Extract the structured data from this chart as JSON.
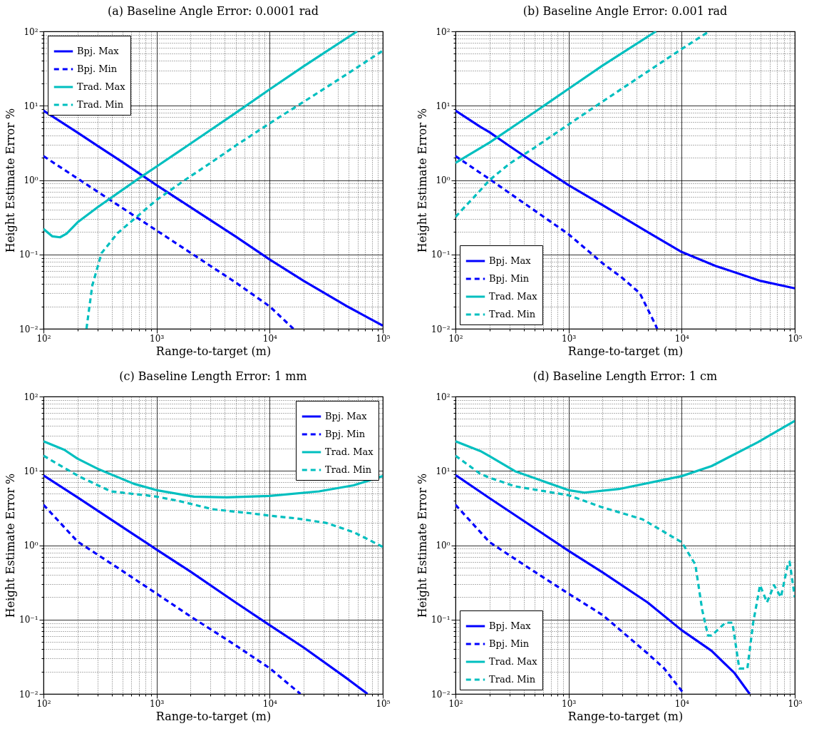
{
  "chart_data": [
    {
      "type": "line",
      "title": "(a)  Baseline Angle Error: 0.0001 rad",
      "xlabel": "Range-to-target (m)",
      "ylabel": "Height Estimate Error %",
      "log": "xy",
      "grid": true,
      "legend": "top left",
      "xlim": [
        100,
        100000
      ],
      "ylim": [
        0.01,
        100
      ],
      "xticks": [
        {
          "value": 100,
          "label": "10²"
        },
        {
          "value": 200,
          "label": null
        },
        {
          "value": 300,
          "label": null
        },
        {
          "value": 400,
          "label": null
        },
        {
          "value": 500,
          "label": null
        },
        {
          "value": 600,
          "label": null
        },
        {
          "value": 700,
          "label": null
        },
        {
          "value": 800,
          "label": null
        },
        {
          "value": 900,
          "label": null
        },
        {
          "value": 1000,
          "label": "10³"
        },
        {
          "value": 2000,
          "label": null
        },
        {
          "value": 3000,
          "label": null
        },
        {
          "value": 4000,
          "label": null
        },
        {
          "value": 5000,
          "label": null
        },
        {
          "value": 6000,
          "label": null
        },
        {
          "value": 7000,
          "label": null
        },
        {
          "value": 8000,
          "label": null
        },
        {
          "value": 9000,
          "label": null
        },
        {
          "value": 10000,
          "label": "10⁴"
        },
        {
          "value": 20000,
          "label": null
        },
        {
          "value": 30000,
          "label": null
        },
        {
          "value": 40000,
          "label": null
        },
        {
          "value": 50000,
          "label": null
        },
        {
          "value": 60000,
          "label": null
        },
        {
          "value": 70000,
          "label": null
        },
        {
          "value": 80000,
          "label": null
        },
        {
          "value": 90000,
          "label": null
        },
        {
          "value": 100000,
          "label": "10⁵"
        }
      ],
      "yticks": [
        {
          "value": 0.01,
          "label": "10⁻²"
        },
        {
          "value": 0.02,
          "label": null
        },
        {
          "value": 0.03,
          "label": null
        },
        {
          "value": 0.04,
          "label": null
        },
        {
          "value": 0.05,
          "label": null
        },
        {
          "value": 0.06,
          "label": null
        },
        {
          "value": 0.07,
          "label": null
        },
        {
          "value": 0.08,
          "label": null
        },
        {
          "value": 0.09,
          "label": null
        },
        {
          "value": 0.1,
          "label": "10⁻¹"
        },
        {
          "value": 0.2,
          "label": null
        },
        {
          "value": 0.3,
          "label": null
        },
        {
          "value": 0.4,
          "label": null
        },
        {
          "value": 0.5,
          "label": null
        },
        {
          "value": 0.6,
          "label": null
        },
        {
          "value": 0.7,
          "label": null
        },
        {
          "value": 0.8,
          "label": null
        },
        {
          "value": 0.9,
          "label": null
        },
        {
          "value": 1,
          "label": "10⁰"
        },
        {
          "value": 2,
          "label": null
        },
        {
          "value": 3,
          "label": null
        },
        {
          "value": 4,
          "label": null
        },
        {
          "value": 5,
          "label": null
        },
        {
          "value": 6,
          "label": null
        },
        {
          "value": 7,
          "label": null
        },
        {
          "value": 8,
          "label": null
        },
        {
          "value": 9,
          "label": null
        },
        {
          "value": 10,
          "label": "10¹"
        },
        {
          "value": 20,
          "label": null
        },
        {
          "value": 30,
          "label": null
        },
        {
          "value": 40,
          "label": null
        },
        {
          "value": 50,
          "label": null
        },
        {
          "value": 60,
          "label": null
        },
        {
          "value": 70,
          "label": null
        },
        {
          "value": 80,
          "label": null
        },
        {
          "value": 90,
          "label": null
        },
        {
          "value": 100,
          "label": "10²"
        }
      ],
      "series": [
        {
          "name": "Bpj. Max",
          "color": "#0000ff",
          "line_style": "solid",
          "x": [
            100,
            200,
            300,
            500,
            1000,
            2000,
            5000,
            10000,
            20000,
            50000,
            100000
          ],
          "values": [
            8.6,
            4.35,
            2.9,
            1.74,
            0.855,
            0.43,
            0.174,
            0.0855,
            0.044,
            0.0195,
            0.011
          ]
        },
        {
          "name": "Bpj. Min",
          "color": "#0000ff",
          "line_style": "dashed",
          "x": [
            100,
            200,
            300,
            500,
            1000,
            2000,
            5000,
            10000,
            16200
          ],
          "values": [
            2.1,
            1.05,
            0.7,
            0.42,
            0.21,
            0.105,
            0.042,
            0.02,
            0.01
          ]
        },
        {
          "name": "Trad. Max",
          "color": "#00bfbf",
          "line_style": "solid",
          "x": [
            100,
            120,
            140,
            160,
            200,
            300,
            500,
            727,
            1000,
            2000,
            5000,
            10000,
            20000,
            59300
          ],
          "values": [
            0.22,
            0.175,
            0.17,
            0.19,
            0.27,
            0.43,
            0.74,
            1.1,
            1.52,
            3.1,
            8.0,
            16.6,
            34,
            100
          ]
        },
        {
          "name": "Trad. Min",
          "color": "#00bfbf",
          "line_style": "dashed",
          "x": [
            240,
            255,
            270,
            326,
            453,
            692,
            1000,
            1776,
            3000,
            5000,
            10000,
            20000,
            50000,
            100000
          ],
          "values": [
            0.01,
            0.02,
            0.038,
            0.104,
            0.194,
            0.335,
            0.54,
            1.0,
            1.7,
            2.9,
            5.8,
            11.3,
            27.6,
            55
          ]
        }
      ]
    },
    {
      "type": "line",
      "title": "(b)  Baseline Angle Error: 0.001 rad",
      "xlabel": "Range-to-target (m)",
      "ylabel": "Height Estimate Error %",
      "log": "xy",
      "grid": true,
      "legend": "bottom left",
      "xlim": [
        100,
        100000
      ],
      "ylim": [
        0.01,
        100
      ],
      "xticks": [
        {
          "value": 100,
          "label": "10²"
        },
        {
          "value": 200,
          "label": null
        },
        {
          "value": 300,
          "label": null
        },
        {
          "value": 400,
          "label": null
        },
        {
          "value": 500,
          "label": null
        },
        {
          "value": 600,
          "label": null
        },
        {
          "value": 700,
          "label": null
        },
        {
          "value": 800,
          "label": null
        },
        {
          "value": 900,
          "label": null
        },
        {
          "value": 1000,
          "label": "10³"
        },
        {
          "value": 2000,
          "label": null
        },
        {
          "value": 3000,
          "label": null
        },
        {
          "value": 4000,
          "label": null
        },
        {
          "value": 5000,
          "label": null
        },
        {
          "value": 6000,
          "label": null
        },
        {
          "value": 7000,
          "label": null
        },
        {
          "value": 8000,
          "label": null
        },
        {
          "value": 9000,
          "label": null
        },
        {
          "value": 10000,
          "label": "10⁴"
        },
        {
          "value": 20000,
          "label": null
        },
        {
          "value": 30000,
          "label": null
        },
        {
          "value": 40000,
          "label": null
        },
        {
          "value": 50000,
          "label": null
        },
        {
          "value": 60000,
          "label": null
        },
        {
          "value": 70000,
          "label": null
        },
        {
          "value": 80000,
          "label": null
        },
        {
          "value": 90000,
          "label": null
        },
        {
          "value": 100000,
          "label": "10⁵"
        }
      ],
      "yticks": [
        {
          "value": 0.01,
          "label": "10⁻²"
        },
        {
          "value": 0.02,
          "label": null
        },
        {
          "value": 0.03,
          "label": null
        },
        {
          "value": 0.04,
          "label": null
        },
        {
          "value": 0.05,
          "label": null
        },
        {
          "value": 0.06,
          "label": null
        },
        {
          "value": 0.07,
          "label": null
        },
        {
          "value": 0.08,
          "label": null
        },
        {
          "value": 0.09,
          "label": null
        },
        {
          "value": 0.1,
          "label": "10⁻¹"
        },
        {
          "value": 0.2,
          "label": null
        },
        {
          "value": 0.3,
          "label": null
        },
        {
          "value": 0.4,
          "label": null
        },
        {
          "value": 0.5,
          "label": null
        },
        {
          "value": 0.6,
          "label": null
        },
        {
          "value": 0.7,
          "label": null
        },
        {
          "value": 0.8,
          "label": null
        },
        {
          "value": 0.9,
          "label": null
        },
        {
          "value": 1,
          "label": "10⁰"
        },
        {
          "value": 2,
          "label": null
        },
        {
          "value": 3,
          "label": null
        },
        {
          "value": 4,
          "label": null
        },
        {
          "value": 5,
          "label": null
        },
        {
          "value": 6,
          "label": null
        },
        {
          "value": 7,
          "label": null
        },
        {
          "value": 8,
          "label": null
        },
        {
          "value": 9,
          "label": null
        },
        {
          "value": 10,
          "label": "10¹"
        },
        {
          "value": 20,
          "label": null
        },
        {
          "value": 30,
          "label": null
        },
        {
          "value": 40,
          "label": null
        },
        {
          "value": 50,
          "label": null
        },
        {
          "value": 60,
          "label": null
        },
        {
          "value": 70,
          "label": null
        },
        {
          "value": 80,
          "label": null
        },
        {
          "value": 90,
          "label": null
        },
        {
          "value": 100,
          "label": "10²"
        }
      ],
      "series": [
        {
          "name": "Bpj. Max",
          "color": "#0000ff",
          "line_style": "solid",
          "x": [
            100,
            166,
            200,
            300,
            500,
            1000,
            2000,
            5000,
            10000,
            20000,
            50000,
            100000
          ],
          "values": [
            8.6,
            5.2,
            4.4,
            2.87,
            1.7,
            0.855,
            0.46,
            0.2,
            0.108,
            0.07,
            0.044,
            0.035
          ]
        },
        {
          "name": "Bpj. Min",
          "color": "#0000ff",
          "line_style": "dashed",
          "x": [
            100,
            200,
            500,
            1000,
            2000,
            3000,
            4270,
            5800,
            6070
          ],
          "values": [
            2.1,
            1.03,
            0.39,
            0.187,
            0.076,
            0.048,
            0.03,
            0.0117,
            0.01
          ]
        },
        {
          "name": "Trad. Max",
          "color": "#00bfbf",
          "line_style": "solid",
          "x": [
            100,
            200,
            500,
            1000,
            2000,
            5930
          ],
          "values": [
            1.7,
            3.2,
            8.2,
            16.9,
            34.7,
            100
          ]
        },
        {
          "name": "Trad. Min",
          "color": "#00bfbf",
          "line_style": "dashed",
          "x": [
            100,
            166,
            200,
            300,
            500,
            1000,
            2000,
            5000,
            10000,
            17500
          ],
          "values": [
            0.32,
            0.73,
            1.0,
            1.66,
            2.73,
            5.6,
            11.4,
            28.8,
            58,
            100
          ]
        }
      ]
    },
    {
      "type": "line",
      "title": "(c)  Baseline Length Error: 1 mm",
      "xlabel": "Range-to-target (m)",
      "ylabel": "Height Estimate Error %",
      "log": "xy",
      "grid": true,
      "legend": "top right",
      "xlim": [
        100,
        100000
      ],
      "ylim": [
        0.01,
        100
      ],
      "xticks": [
        {
          "value": 100,
          "label": "10²"
        },
        {
          "value": 200,
          "label": null
        },
        {
          "value": 300,
          "label": null
        },
        {
          "value": 400,
          "label": null
        },
        {
          "value": 500,
          "label": null
        },
        {
          "value": 600,
          "label": null
        },
        {
          "value": 700,
          "label": null
        },
        {
          "value": 800,
          "label": null
        },
        {
          "value": 900,
          "label": null
        },
        {
          "value": 1000,
          "label": "10³"
        },
        {
          "value": 2000,
          "label": null
        },
        {
          "value": 3000,
          "label": null
        },
        {
          "value": 4000,
          "label": null
        },
        {
          "value": 5000,
          "label": null
        },
        {
          "value": 6000,
          "label": null
        },
        {
          "value": 7000,
          "label": null
        },
        {
          "value": 8000,
          "label": null
        },
        {
          "value": 9000,
          "label": null
        },
        {
          "value": 10000,
          "label": "10⁴"
        },
        {
          "value": 20000,
          "label": null
        },
        {
          "value": 30000,
          "label": null
        },
        {
          "value": 40000,
          "label": null
        },
        {
          "value": 50000,
          "label": null
        },
        {
          "value": 60000,
          "label": null
        },
        {
          "value": 70000,
          "label": null
        },
        {
          "value": 80000,
          "label": null
        },
        {
          "value": 90000,
          "label": null
        },
        {
          "value": 100000,
          "label": "10⁵"
        }
      ],
      "yticks": [
        {
          "value": 0.01,
          "label": "10⁻²"
        },
        {
          "value": 0.02,
          "label": null
        },
        {
          "value": 0.03,
          "label": null
        },
        {
          "value": 0.04,
          "label": null
        },
        {
          "value": 0.05,
          "label": null
        },
        {
          "value": 0.06,
          "label": null
        },
        {
          "value": 0.07,
          "label": null
        },
        {
          "value": 0.08,
          "label": null
        },
        {
          "value": 0.09,
          "label": null
        },
        {
          "value": 0.1,
          "label": "10⁻¹"
        },
        {
          "value": 0.2,
          "label": null
        },
        {
          "value": 0.3,
          "label": null
        },
        {
          "value": 0.4,
          "label": null
        },
        {
          "value": 0.5,
          "label": null
        },
        {
          "value": 0.6,
          "label": null
        },
        {
          "value": 0.7,
          "label": null
        },
        {
          "value": 0.8,
          "label": null
        },
        {
          "value": 0.9,
          "label": null
        },
        {
          "value": 1,
          "label": "10⁰"
        },
        {
          "value": 2,
          "label": null
        },
        {
          "value": 3,
          "label": null
        },
        {
          "value": 4,
          "label": null
        },
        {
          "value": 5,
          "label": null
        },
        {
          "value": 6,
          "label": null
        },
        {
          "value": 7,
          "label": null
        },
        {
          "value": 8,
          "label": null
        },
        {
          "value": 9,
          "label": null
        },
        {
          "value": 10,
          "label": "10¹"
        },
        {
          "value": 20,
          "label": null
        },
        {
          "value": 30,
          "label": null
        },
        {
          "value": 40,
          "label": null
        },
        {
          "value": 50,
          "label": null
        },
        {
          "value": 60,
          "label": null
        },
        {
          "value": 70,
          "label": null
        },
        {
          "value": 80,
          "label": null
        },
        {
          "value": 90,
          "label": null
        },
        {
          "value": 100,
          "label": "10²"
        }
      ],
      "series": [
        {
          "name": "Bpj. Max",
          "color": "#0000ff",
          "line_style": "solid",
          "x": [
            100,
            200,
            500,
            1000,
            2000,
            5000,
            10000,
            20000,
            50000,
            73300
          ],
          "values": [
            8.7,
            4.4,
            1.75,
            0.875,
            0.44,
            0.17,
            0.084,
            0.042,
            0.0155,
            0.01
          ]
        },
        {
          "name": "Bpj. Min",
          "color": "#0000ff",
          "line_style": "dashed",
          "x": [
            100,
            200,
            500,
            1000,
            2000,
            5000,
            10000,
            18700
          ],
          "values": [
            3.5,
            1.12,
            0.45,
            0.223,
            0.11,
            0.045,
            0.0222,
            0.01
          ]
        },
        {
          "name": "Trad. Max",
          "color": "#00bfbf",
          "line_style": "solid",
          "x": [
            100,
            153,
            200,
            300,
            630,
            1000,
            2140,
            4150,
            10000,
            27300,
            55200,
            100000
          ],
          "values": [
            25,
            19.2,
            14.6,
            10.7,
            6.7,
            5.5,
            4.5,
            4.4,
            4.6,
            5.3,
            6.4,
            8.5
          ]
        },
        {
          "name": "Trad. Min",
          "color": "#00bfbf",
          "line_style": "dashed",
          "x": [
            100,
            204,
            394,
            798,
            1000,
            1620,
            3120,
            6630,
            10000,
            17000,
            31400,
            55200,
            100000
          ],
          "values": [
            16,
            8.5,
            5.3,
            4.7,
            4.5,
            3.9,
            3.05,
            2.7,
            2.5,
            2.3,
            2.0,
            1.5,
            0.95
          ]
        }
      ]
    },
    {
      "type": "line",
      "title": "(d)  Baseline Length Error: 1 cm",
      "xlabel": "Range-to-target (m)",
      "ylabel": "Height Estimate Error %",
      "log": "xy",
      "grid": true,
      "legend": "bottom left",
      "xlim": [
        100,
        100000
      ],
      "ylim": [
        0.01,
        100
      ],
      "xticks": [
        {
          "value": 100,
          "label": "10²"
        },
        {
          "value": 200,
          "label": null
        },
        {
          "value": 300,
          "label": null
        },
        {
          "value": 400,
          "label": null
        },
        {
          "value": 500,
          "label": null
        },
        {
          "value": 600,
          "label": null
        },
        {
          "value": 700,
          "label": null
        },
        {
          "value": 800,
          "label": null
        },
        {
          "value": 900,
          "label": null
        },
        {
          "value": 1000,
          "label": "10³"
        },
        {
          "value": 2000,
          "label": null
        },
        {
          "value": 3000,
          "label": null
        },
        {
          "value": 4000,
          "label": null
        },
        {
          "value": 5000,
          "label": null
        },
        {
          "value": 6000,
          "label": null
        },
        {
          "value": 7000,
          "label": null
        },
        {
          "value": 8000,
          "label": null
        },
        {
          "value": 9000,
          "label": null
        },
        {
          "value": 10000,
          "label": "10⁴"
        },
        {
          "value": 20000,
          "label": null
        },
        {
          "value": 30000,
          "label": null
        },
        {
          "value": 40000,
          "label": null
        },
        {
          "value": 50000,
          "label": null
        },
        {
          "value": 60000,
          "label": null
        },
        {
          "value": 70000,
          "label": null
        },
        {
          "value": 80000,
          "label": null
        },
        {
          "value": 90000,
          "label": null
        },
        {
          "value": 100000,
          "label": "10⁵"
        }
      ],
      "yticks": [
        {
          "value": 0.01,
          "label": "10⁻²"
        },
        {
          "value": 0.02,
          "label": null
        },
        {
          "value": 0.03,
          "label": null
        },
        {
          "value": 0.04,
          "label": null
        },
        {
          "value": 0.05,
          "label": null
        },
        {
          "value": 0.06,
          "label": null
        },
        {
          "value": 0.07,
          "label": null
        },
        {
          "value": 0.08,
          "label": null
        },
        {
          "value": 0.09,
          "label": null
        },
        {
          "value": 0.1,
          "label": "10⁻¹"
        },
        {
          "value": 0.2,
          "label": null
        },
        {
          "value": 0.3,
          "label": null
        },
        {
          "value": 0.4,
          "label": null
        },
        {
          "value": 0.5,
          "label": null
        },
        {
          "value": 0.6,
          "label": null
        },
        {
          "value": 0.7,
          "label": null
        },
        {
          "value": 0.8,
          "label": null
        },
        {
          "value": 0.9,
          "label": null
        },
        {
          "value": 1,
          "label": "10⁰"
        },
        {
          "value": 2,
          "label": null
        },
        {
          "value": 3,
          "label": null
        },
        {
          "value": 4,
          "label": null
        },
        {
          "value": 5,
          "label": null
        },
        {
          "value": 6,
          "label": null
        },
        {
          "value": 7,
          "label": null
        },
        {
          "value": 8,
          "label": null
        },
        {
          "value": 9,
          "label": null
        },
        {
          "value": 10,
          "label": "10¹"
        },
        {
          "value": 20,
          "label": null
        },
        {
          "value": 30,
          "label": null
        },
        {
          "value": 40,
          "label": null
        },
        {
          "value": 50,
          "label": null
        },
        {
          "value": 60,
          "label": null
        },
        {
          "value": 70,
          "label": null
        },
        {
          "value": 80,
          "label": null
        },
        {
          "value": 90,
          "label": null
        },
        {
          "value": 100,
          "label": "10²"
        }
      ],
      "series": [
        {
          "name": "Bpj. Max",
          "color": "#0000ff",
          "line_style": "solid",
          "x": [
            100,
            200,
            500,
            1000,
            2000,
            5000,
            10000,
            18400,
            29400,
            39900
          ],
          "values": [
            8.8,
            4.3,
            1.7,
            0.84,
            0.43,
            0.17,
            0.072,
            0.038,
            0.019,
            0.01
          ]
        },
        {
          "name": "Bpj. Min",
          "color": "#0000ff",
          "line_style": "dashed",
          "x": [
            100,
            200,
            500,
            1000,
            2000,
            5000,
            7000,
            10000,
            10500
          ],
          "values": [
            3.5,
            1.1,
            0.44,
            0.223,
            0.115,
            0.035,
            0.022,
            0.011,
            0.01
          ]
        },
        {
          "name": "Trad. Max",
          "color": "#00bfbf",
          "line_style": "solid",
          "x": [
            100,
            166,
            200,
            336,
            1000,
            1380,
            2790,
            10000,
            18400,
            47100,
            100000
          ],
          "values": [
            25,
            18.5,
            15.8,
            9.9,
            5.5,
            5.1,
            5.7,
            8.5,
            11.6,
            24.3,
            47
          ]
        },
        {
          "name": "Trad. Min",
          "color": "#00bfbf",
          "line_style": "dashed",
          "x": [
            100,
            166,
            200,
            336,
            1000,
            1910,
            4470,
            10000,
            13200,
            15200,
            17100,
            18400,
            24400,
            28100,
            32300,
            38100,
            42900,
            49300,
            56800,
            65500,
            75400,
            86800,
            90000,
            100000
          ],
          "values": [
            16,
            9.1,
            8.1,
            6.2,
            4.7,
            3.3,
            2.24,
            1.1,
            0.55,
            0.134,
            0.061,
            0.061,
            0.091,
            0.091,
            0.022,
            0.022,
            0.091,
            0.29,
            0.17,
            0.29,
            0.2,
            0.55,
            0.6,
            0.2
          ]
        }
      ]
    }
  ]
}
